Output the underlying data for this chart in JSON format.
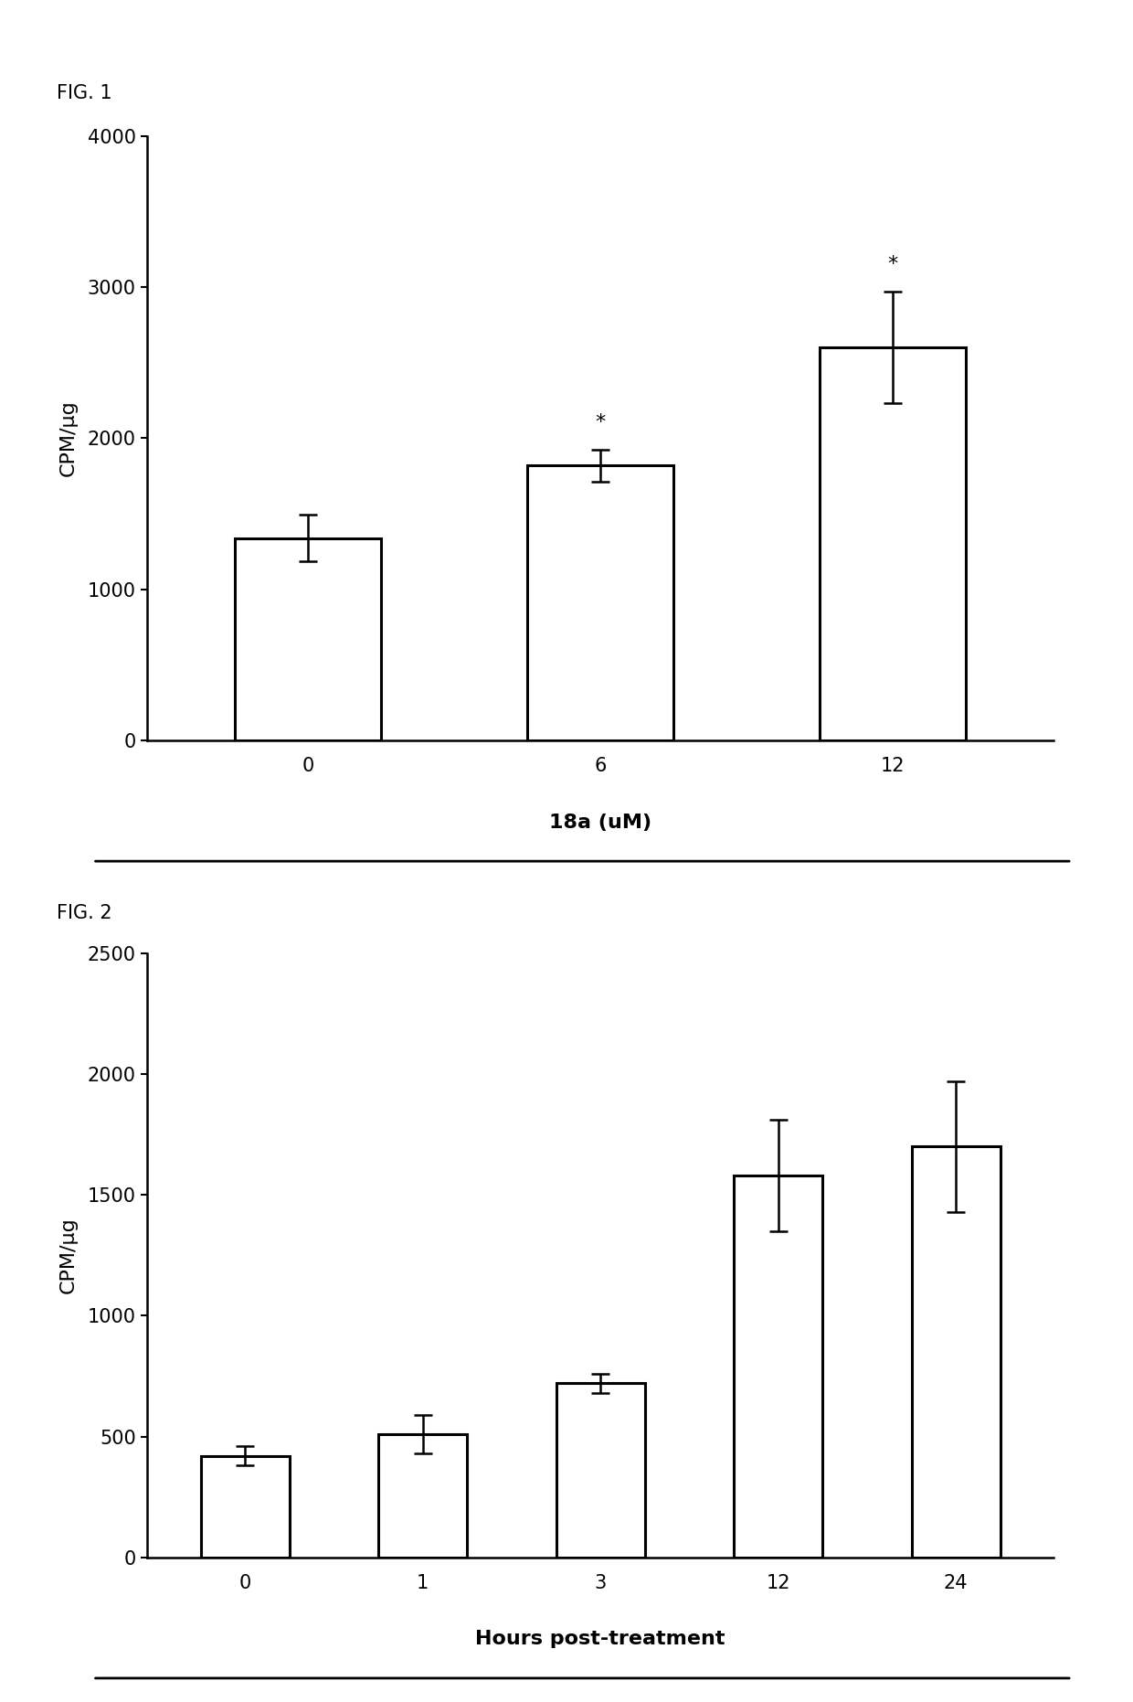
{
  "fig1": {
    "categories": [
      "0",
      "6",
      "12"
    ],
    "values": [
      1340,
      1820,
      2600
    ],
    "errors": [
      155,
      105,
      370
    ],
    "ylabel": "CPM/μg",
    "xlabel": "18a (uM)",
    "ylim": [
      0,
      4000
    ],
    "yticks": [
      0,
      1000,
      2000,
      3000,
      4000
    ],
    "star_annotations": [
      false,
      true,
      true
    ],
    "fig_label": "FIG. 1"
  },
  "fig2": {
    "categories": [
      "0",
      "1",
      "3",
      "12",
      "24"
    ],
    "values": [
      420,
      510,
      720,
      1580,
      1700
    ],
    "errors": [
      40,
      80,
      40,
      230,
      270
    ],
    "ylabel": "CPM/μg",
    "xlabel": "Hours post-treatment",
    "ylim": [
      0,
      2500
    ],
    "yticks": [
      0,
      500,
      1000,
      1500,
      2000,
      2500
    ],
    "fig_label": "FIG. 2"
  },
  "bar_color": "white",
  "bar_edgecolor": "black",
  "bar_linewidth": 2.2,
  "bar_width": 0.5,
  "error_linewidth": 1.8,
  "error_capsize": 7,
  "error_capthick": 1.8,
  "background_color": "white",
  "ylabel_fontsize": 16,
  "xlabel_fontsize": 16,
  "tick_fontsize": 15,
  "figlabel_fontsize": 15,
  "star_fontsize": 16,
  "spine_linewidth": 1.8,
  "underline_lw": 2.0
}
